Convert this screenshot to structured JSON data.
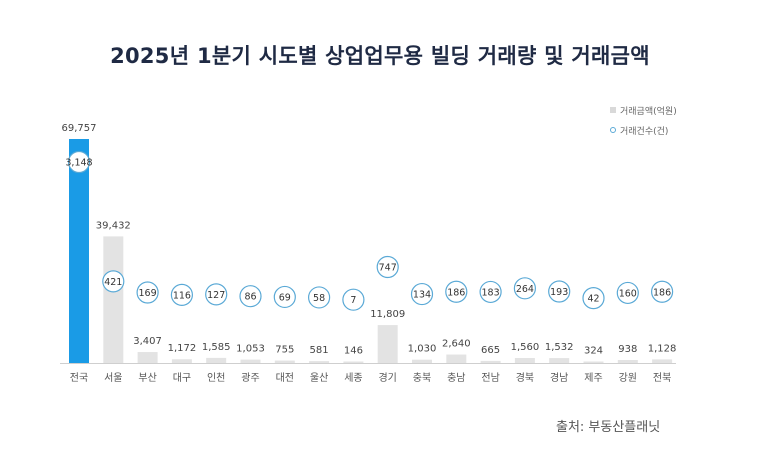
{
  "title": "2025년 1분기 시도별 상업업무용 빌딩 거래량 및 거래금액",
  "source": "출처: 부동산플래닛",
  "chart_data": {
    "type": "bar",
    "categories": [
      "전국",
      "서울",
      "부산",
      "대구",
      "인천",
      "광주",
      "대전",
      "울산",
      "세종",
      "경기",
      "충북",
      "충남",
      "전남",
      "경북",
      "경남",
      "제주",
      "강원",
      "전북"
    ],
    "series": [
      {
        "name": "거래금액(억원)",
        "values": [
          69757,
          39432,
          3407,
          1172,
          1585,
          1053,
          755,
          581,
          146,
          11809,
          1030,
          2640,
          665,
          1560,
          1532,
          324,
          938,
          1128
        ],
        "labels": [
          "69,757",
          "39,432",
          "3,407",
          "1,172",
          "1,585",
          "1,053",
          "755",
          "581",
          "146",
          "11,809",
          "1,030",
          "2,640",
          "665",
          "1,560",
          "1,532",
          "324",
          "938",
          "1,128"
        ]
      },
      {
        "name": "거래건수(건)",
        "values": [
          3148,
          421,
          169,
          116,
          127,
          86,
          69,
          58,
          7,
          747,
          134,
          186,
          183,
          264,
          193,
          42,
          160,
          186
        ],
        "labels": [
          "3,148",
          "421",
          "169",
          "116",
          "127",
          "86",
          "69",
          "58",
          "7",
          "747",
          "134",
          "186",
          "183",
          "264",
          "193",
          "42",
          "160",
          "186"
        ]
      }
    ],
    "highlight_category": "전국",
    "colors": {
      "bar": "#e3e3e3",
      "bar_highlight": "#1a9be6",
      "bubble_stroke": "#5aa9d6",
      "label": "#444444"
    },
    "legend_position": "top-right"
  }
}
